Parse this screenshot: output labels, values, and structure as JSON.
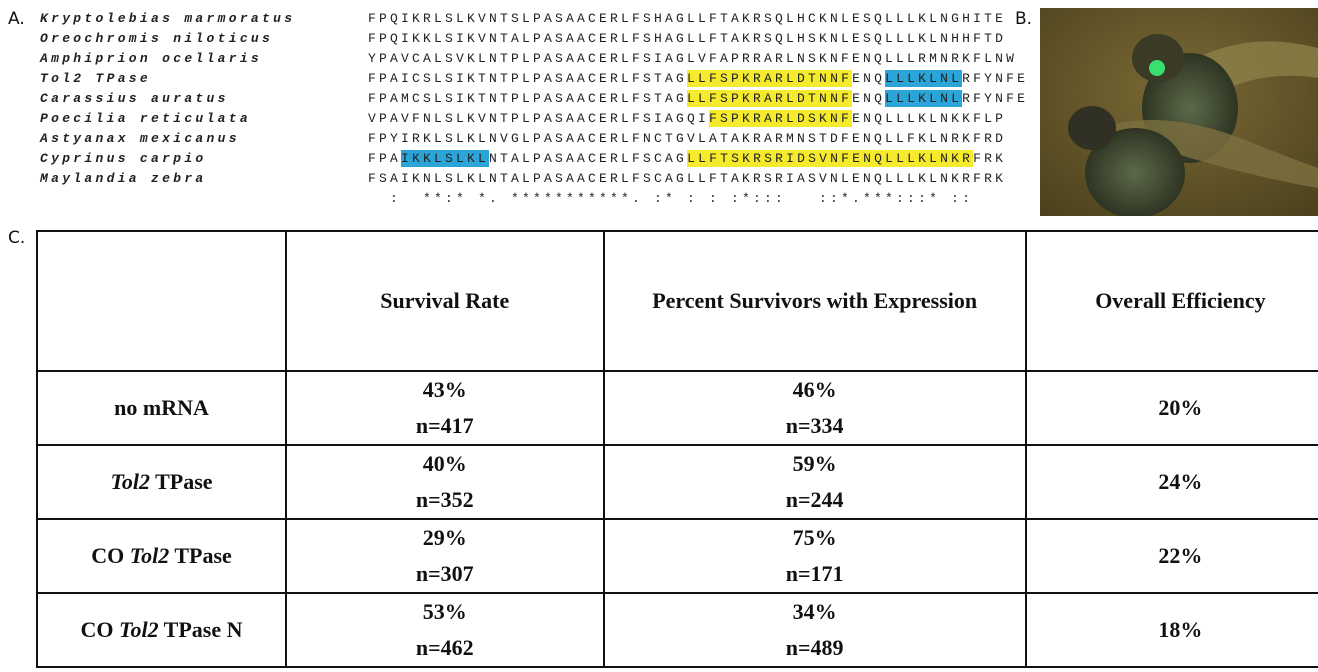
{
  "panels": {
    "a": "A.",
    "b": "B.",
    "c": "C."
  },
  "alignment": {
    "rows": [
      {
        "species": "Kryptolebias marmoratus",
        "sequence": [
          {
            "text": "FPQIKRLSLKVNTSLPASAACERLFSHAGLLFTAKRSQLHCKNLESQLLLKLNGHITE"
          }
        ]
      },
      {
        "species": "Oreochromis niloticus",
        "sequence": [
          {
            "text": "FPQIKKLSIKVNTALPASAACERLFSHAGLLFTAKRSQLHSKNLESQLLLKLNHHFTD"
          }
        ]
      },
      {
        "species": "Amphiprion ocellaris",
        "sequence": [
          {
            "text": "YPAVCALSVKLNTPLPASAACERLFSIAGLVFAPRRARLNSKNFENQLLLRMNRKFLNW"
          }
        ]
      },
      {
        "species": "Tol2 TPase",
        "sequence": [
          {
            "text": "FPAICSLSIKTNTPLPASAACERLFSTAG"
          },
          {
            "text": "LLFSPKRARLDTNNF",
            "highlight": "#f5ea2c"
          },
          {
            "text": "ENQ"
          },
          {
            "text": "LLLKLNL",
            "highlight": "#2ba4d8"
          },
          {
            "text": "RFYNFE"
          }
        ]
      },
      {
        "species": "Carassius auratus",
        "sequence": [
          {
            "text": "FPAMCSLSIKTNTPLPASAACERLFSTAG"
          },
          {
            "text": "LLFSPKRARLDTNNF",
            "highlight": "#f5ea2c"
          },
          {
            "text": "ENQ"
          },
          {
            "text": "LLLKLNL",
            "highlight": "#2ba4d8"
          },
          {
            "text": "RFYNFE"
          }
        ]
      },
      {
        "species": "Poecilia reticulata",
        "sequence": [
          {
            "text": "VPAVFNLSLKVNTPLPASAACERLFSIAGQI"
          },
          {
            "text": "FSPKRARLDSKNF",
            "highlight": "#f5ea2c"
          },
          {
            "text": "ENQLLLKLNKKFLP"
          }
        ]
      },
      {
        "species": "Astyanax mexicanus",
        "sequence": [
          {
            "text": "FPYIRKLSLKLNVGLPASAACERLFNCTGVLATAKRARMNSTDFENQLLFKLNRKFRD"
          }
        ]
      },
      {
        "species": "Cyprinus carpio",
        "sequence": [
          {
            "text": "FPA"
          },
          {
            "text": "IKKLSLKL",
            "highlight": "#2ba4d8"
          },
          {
            "text": "NTALPASAACERLFSCAG"
          },
          {
            "text": "LLFTSKRSRIDSVNFENQLLLKLNKR",
            "highlight": "#f5ea2c"
          },
          {
            "text": "FRK"
          }
        ]
      },
      {
        "species": "Maylandia zebra",
        "sequence": [
          {
            "text": "FSAIKNLSLKLNTALPASAACERLFSCAGLLFTAKRSRIASVNLENQLLLKLNKRFRK"
          }
        ]
      }
    ],
    "consensus": "  :  **:* *. ***********. :* : : :*:::   ::*.***:::* ::"
  },
  "table": {
    "header": [
      "Survival Rate",
      "Percent Survivors with Expression",
      "Overall Efficiency"
    ],
    "rows": [
      {
        "name": [
          {
            "text": "no mRNA"
          }
        ],
        "cells": [
          [
            "43%",
            "n=417"
          ],
          [
            "46%",
            "n=334"
          ],
          [
            "20%"
          ]
        ]
      },
      {
        "name": [
          {
            "text": "Tol2",
            "italic": true
          },
          {
            "text": " TPase"
          }
        ],
        "cells": [
          [
            "40%",
            "n=352"
          ],
          [
            "59%",
            "n=244"
          ],
          [
            "24%"
          ]
        ]
      },
      {
        "name": [
          {
            "text": "CO "
          },
          {
            "text": "Tol2",
            "italic": true
          },
          {
            "text": " TPase"
          }
        ],
        "cells": [
          [
            "29%",
            "n=307"
          ],
          [
            "75%",
            "n=171"
          ],
          [
            "22%"
          ]
        ]
      },
      {
        "name": [
          {
            "text": "CO "
          },
          {
            "text": "Tol2",
            "italic": true
          },
          {
            "text": " TPase N"
          }
        ],
        "cells": [
          [
            "53%",
            "n=462"
          ],
          [
            "34%",
            "n=489"
          ],
          [
            "18%"
          ]
        ]
      }
    ]
  }
}
